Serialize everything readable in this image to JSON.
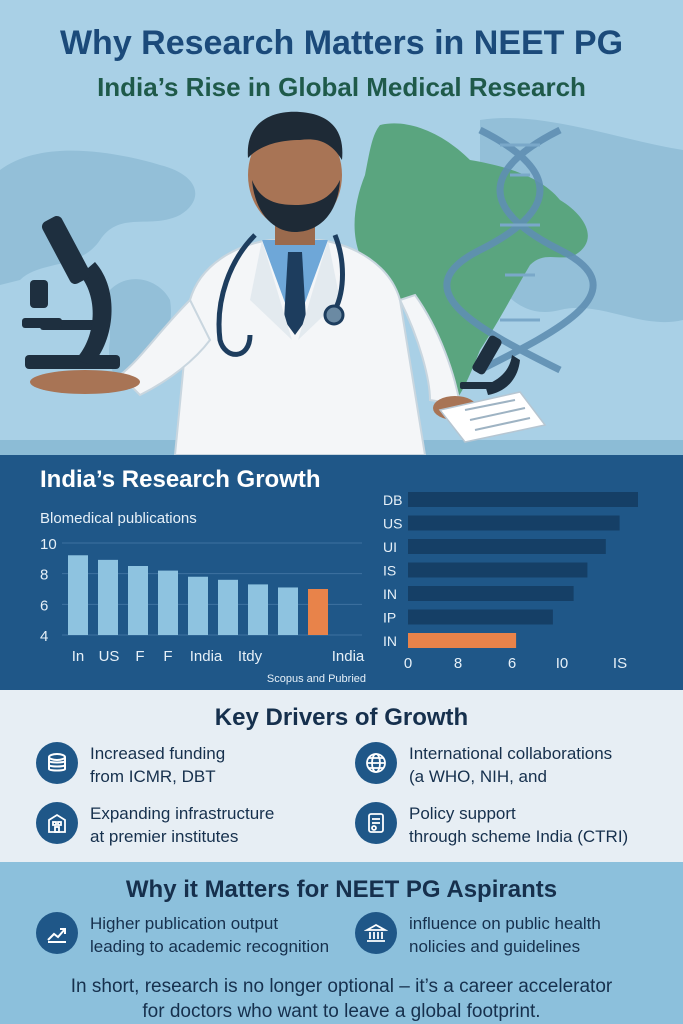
{
  "header": {
    "title": "Why Research Matters in NEET PG",
    "subtitle": "India’s Rise in Global Medical Research"
  },
  "growth": {
    "title": "India’s Research Growth",
    "subtitle": "Blomedical publications",
    "source": "Scopus and Pubried"
  },
  "chart_data": [
    {
      "type": "bar",
      "title": "Blomedical publications",
      "categories": [
        "In",
        "US",
        "F",
        "F",
        "India",
        "Itdy",
        "",
        "",
        "India"
      ],
      "values": [
        9.2,
        8.9,
        8.5,
        8.2,
        7.8,
        7.6,
        7.3,
        7.1,
        7.0
      ],
      "y_ticks": [
        "10",
        "8",
        "6",
        "4"
      ],
      "ylim": [
        4,
        10
      ],
      "highlight_color": "#e8834a",
      "bar_color": "#8ec3e0"
    },
    {
      "type": "bar",
      "orientation": "horizontal",
      "categories": [
        "DB",
        "US",
        "UI",
        "IS",
        "IN",
        "IP",
        "IN"
      ],
      "values": [
        100,
        92,
        86,
        78,
        72,
        63,
        47
      ],
      "x_ticks": [
        "0",
        "8",
        "6",
        "I0",
        "IS"
      ],
      "highlight_color": "#e8834a",
      "bar_color": "#153f66"
    }
  ],
  "drivers": {
    "heading": "Key Drivers of Growth",
    "items": [
      {
        "line1": "Increased funding",
        "line2": "from ICMR, DBT",
        "icon": "coins-icon"
      },
      {
        "line1": "International collaborations",
        "line2": "(a WHO, NIH, and",
        "icon": "globe-icon"
      },
      {
        "line1": "Expanding infrastructure",
        "line2": "at premier institutes",
        "icon": "building-icon"
      },
      {
        "line1": "Policy support",
        "line2": "through scheme India (CTRI)",
        "icon": "document-icon"
      }
    ]
  },
  "matters": {
    "heading": "Why it Matters for NEET PG Aspirants",
    "items": [
      {
        "line1": "Higher publication output",
        "line2": "leading to academic recognition",
        "icon": "trend-up-icon"
      },
      {
        "line1": "influence on public health",
        "line2": "nolicies and guidelines",
        "icon": "government-icon"
      }
    ],
    "conclusion_line1": "In short, research is no longer optional – it’s a career accelerator",
    "conclusion_line2": "for doctors who want to leave a global footprint."
  },
  "colors": {
    "navy": "#1f5788",
    "accent": "#e8834a",
    "light_bar": "#8ec3e0",
    "dark_bar": "#153f66"
  }
}
